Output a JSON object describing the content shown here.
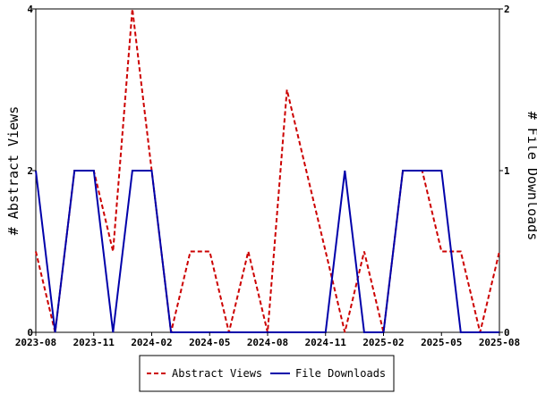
{
  "chart_data": {
    "type": "line",
    "x": [
      "2023-08",
      "2023-09",
      "2023-10",
      "2023-11",
      "2023-12",
      "2024-01",
      "2024-02",
      "2024-03",
      "2024-04",
      "2024-05",
      "2024-06",
      "2024-07",
      "2024-08",
      "2024-09",
      "2024-10",
      "2024-11",
      "2024-12",
      "2025-01",
      "2025-02",
      "2025-03",
      "2025-04",
      "2025-05",
      "2025-06",
      "2025-07",
      "2025-08"
    ],
    "x_ticks": [
      "2023-08",
      "2023-11",
      "2024-02",
      "2024-05",
      "2024-08",
      "2024-11",
      "2025-02",
      "2025-05",
      "2025-08"
    ],
    "series": [
      {
        "name": "Abstract Views",
        "axis": "left",
        "color": "#cc0000",
        "style": "dashed",
        "values": [
          1,
          0,
          2,
          2,
          1,
          4,
          2,
          0,
          1,
          1,
          0,
          1,
          0,
          3,
          2,
          1,
          0,
          1,
          0,
          2,
          2,
          1,
          1,
          0,
          1
        ]
      },
      {
        "name": "File Downloads",
        "axis": "right",
        "color": "#0000aa",
        "style": "solid",
        "values": [
          1,
          0,
          1,
          1,
          0,
          1,
          1,
          0,
          0,
          0,
          0,
          0,
          0,
          0,
          0,
          0,
          1,
          0,
          0,
          1,
          1,
          1,
          0,
          0,
          0
        ]
      }
    ],
    "ylabel": "# Abstract Views",
    "y2label": "# File Downloads",
    "ylim": [
      0,
      4
    ],
    "y2lim": [
      0,
      2
    ],
    "y_ticks": [
      "0",
      "2",
      "4"
    ],
    "y2_ticks": [
      "0",
      "1",
      "2"
    ],
    "grid": false,
    "legend_position": "bottom"
  }
}
